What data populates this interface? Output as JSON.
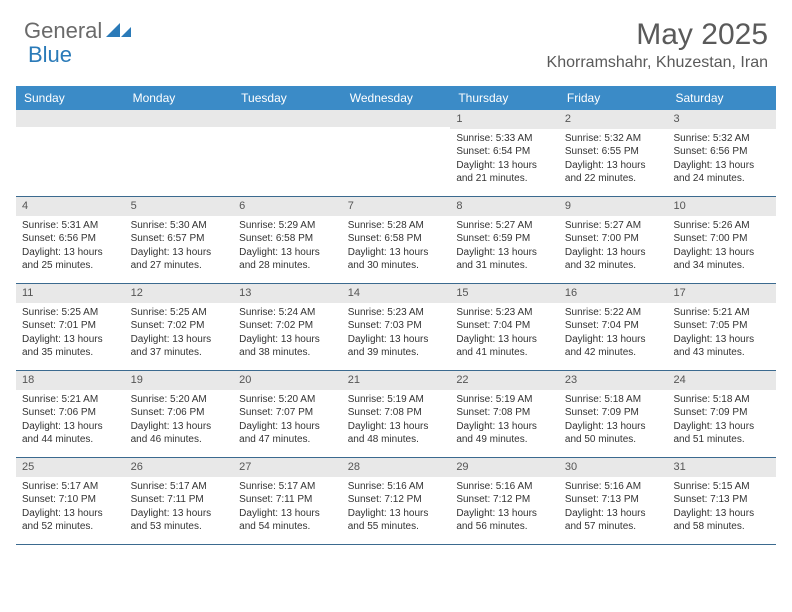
{
  "logo": {
    "part1": "General",
    "part2": "Blue"
  },
  "title": "May 2025",
  "location": "Khorramshahr, Khuzestan, Iran",
  "colors": {
    "header_bg": "#3b8bc7",
    "header_text": "#ffffff",
    "daynum_bg": "#e8e8e8",
    "week_border": "#3b6a8f",
    "text": "#333333",
    "title_text": "#5a5a5a",
    "logo_gray": "#6a6a6a",
    "logo_blue": "#2a7ab8"
  },
  "day_headers": [
    "Sunday",
    "Monday",
    "Tuesday",
    "Wednesday",
    "Thursday",
    "Friday",
    "Saturday"
  ],
  "weeks": [
    [
      {
        "empty": true
      },
      {
        "empty": true
      },
      {
        "empty": true
      },
      {
        "empty": true
      },
      {
        "n": "1",
        "sr": "5:33 AM",
        "ss": "6:54 PM",
        "dl": "13 hours and 21 minutes."
      },
      {
        "n": "2",
        "sr": "5:32 AM",
        "ss": "6:55 PM",
        "dl": "13 hours and 22 minutes."
      },
      {
        "n": "3",
        "sr": "5:32 AM",
        "ss": "6:56 PM",
        "dl": "13 hours and 24 minutes."
      }
    ],
    [
      {
        "n": "4",
        "sr": "5:31 AM",
        "ss": "6:56 PM",
        "dl": "13 hours and 25 minutes."
      },
      {
        "n": "5",
        "sr": "5:30 AM",
        "ss": "6:57 PM",
        "dl": "13 hours and 27 minutes."
      },
      {
        "n": "6",
        "sr": "5:29 AM",
        "ss": "6:58 PM",
        "dl": "13 hours and 28 minutes."
      },
      {
        "n": "7",
        "sr": "5:28 AM",
        "ss": "6:58 PM",
        "dl": "13 hours and 30 minutes."
      },
      {
        "n": "8",
        "sr": "5:27 AM",
        "ss": "6:59 PM",
        "dl": "13 hours and 31 minutes."
      },
      {
        "n": "9",
        "sr": "5:27 AM",
        "ss": "7:00 PM",
        "dl": "13 hours and 32 minutes."
      },
      {
        "n": "10",
        "sr": "5:26 AM",
        "ss": "7:00 PM",
        "dl": "13 hours and 34 minutes."
      }
    ],
    [
      {
        "n": "11",
        "sr": "5:25 AM",
        "ss": "7:01 PM",
        "dl": "13 hours and 35 minutes."
      },
      {
        "n": "12",
        "sr": "5:25 AM",
        "ss": "7:02 PM",
        "dl": "13 hours and 37 minutes."
      },
      {
        "n": "13",
        "sr": "5:24 AM",
        "ss": "7:02 PM",
        "dl": "13 hours and 38 minutes."
      },
      {
        "n": "14",
        "sr": "5:23 AM",
        "ss": "7:03 PM",
        "dl": "13 hours and 39 minutes."
      },
      {
        "n": "15",
        "sr": "5:23 AM",
        "ss": "7:04 PM",
        "dl": "13 hours and 41 minutes."
      },
      {
        "n": "16",
        "sr": "5:22 AM",
        "ss": "7:04 PM",
        "dl": "13 hours and 42 minutes."
      },
      {
        "n": "17",
        "sr": "5:21 AM",
        "ss": "7:05 PM",
        "dl": "13 hours and 43 minutes."
      }
    ],
    [
      {
        "n": "18",
        "sr": "5:21 AM",
        "ss": "7:06 PM",
        "dl": "13 hours and 44 minutes."
      },
      {
        "n": "19",
        "sr": "5:20 AM",
        "ss": "7:06 PM",
        "dl": "13 hours and 46 minutes."
      },
      {
        "n": "20",
        "sr": "5:20 AM",
        "ss": "7:07 PM",
        "dl": "13 hours and 47 minutes."
      },
      {
        "n": "21",
        "sr": "5:19 AM",
        "ss": "7:08 PM",
        "dl": "13 hours and 48 minutes."
      },
      {
        "n": "22",
        "sr": "5:19 AM",
        "ss": "7:08 PM",
        "dl": "13 hours and 49 minutes."
      },
      {
        "n": "23",
        "sr": "5:18 AM",
        "ss": "7:09 PM",
        "dl": "13 hours and 50 minutes."
      },
      {
        "n": "24",
        "sr": "5:18 AM",
        "ss": "7:09 PM",
        "dl": "13 hours and 51 minutes."
      }
    ],
    [
      {
        "n": "25",
        "sr": "5:17 AM",
        "ss": "7:10 PM",
        "dl": "13 hours and 52 minutes."
      },
      {
        "n": "26",
        "sr": "5:17 AM",
        "ss": "7:11 PM",
        "dl": "13 hours and 53 minutes."
      },
      {
        "n": "27",
        "sr": "5:17 AM",
        "ss": "7:11 PM",
        "dl": "13 hours and 54 minutes."
      },
      {
        "n": "28",
        "sr": "5:16 AM",
        "ss": "7:12 PM",
        "dl": "13 hours and 55 minutes."
      },
      {
        "n": "29",
        "sr": "5:16 AM",
        "ss": "7:12 PM",
        "dl": "13 hours and 56 minutes."
      },
      {
        "n": "30",
        "sr": "5:16 AM",
        "ss": "7:13 PM",
        "dl": "13 hours and 57 minutes."
      },
      {
        "n": "31",
        "sr": "5:15 AM",
        "ss": "7:13 PM",
        "dl": "13 hours and 58 minutes."
      }
    ]
  ],
  "labels": {
    "sunrise": "Sunrise:",
    "sunset": "Sunset:",
    "daylight": "Daylight:"
  }
}
